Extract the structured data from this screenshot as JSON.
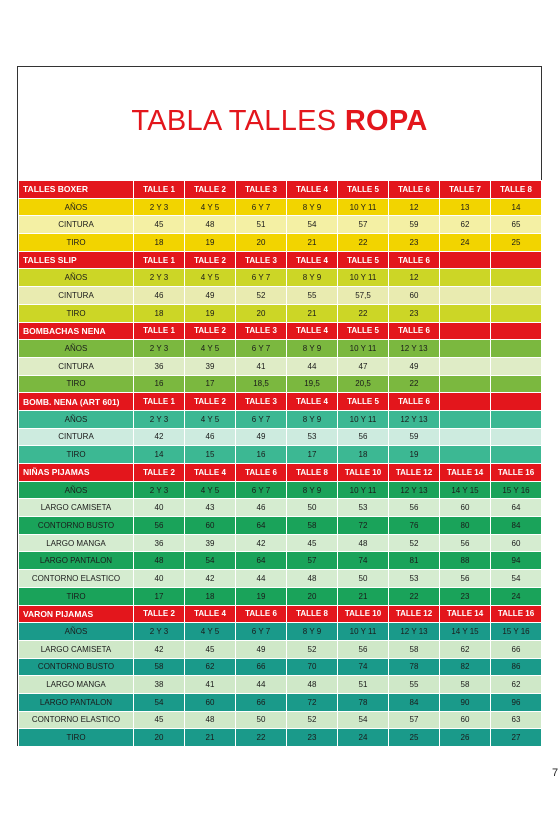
{
  "title": {
    "normal": "TABLA TALLES",
    "bold": "ROPA"
  },
  "page_number": "7",
  "sections": [
    {
      "key": "boxer",
      "header": [
        "TALLES BOXER",
        "TALLE 1",
        "TALLE 2",
        "TALLE 3",
        "TALLE 4",
        "TALLE 5",
        "TALLE 6",
        "TALLE 7",
        "TALLE 8"
      ],
      "rows": [
        [
          "AÑOS",
          "2 Y 3",
          "4 Y 5",
          "6 Y 7",
          "8 Y 9",
          "10 Y 11",
          "12",
          "13",
          "14"
        ],
        [
          "CINTURA",
          "45",
          "48",
          "51",
          "54",
          "57",
          "59",
          "62",
          "65"
        ],
        [
          "TIRO",
          "18",
          "19",
          "20",
          "21",
          "22",
          "23",
          "24",
          "25"
        ]
      ]
    },
    {
      "key": "slip",
      "header": [
        "TALLES SLIP",
        "TALLE 1",
        "TALLE 2",
        "TALLE 3",
        "TALLE 4",
        "TALLE 5",
        "TALLE 6",
        "",
        ""
      ],
      "rows": [
        [
          "AÑOS",
          "2 Y 3",
          "4 Y 5",
          "6 Y 7",
          "8 Y 9",
          "10 Y 11",
          "12",
          "",
          ""
        ],
        [
          "CINTURA",
          "46",
          "49",
          "52",
          "55",
          "57,5",
          "60",
          "",
          ""
        ],
        [
          "TIRO",
          "18",
          "19",
          "20",
          "21",
          "22",
          "23",
          "",
          ""
        ]
      ]
    },
    {
      "key": "bomb",
      "header": [
        "BOMBACHAS NENA",
        "TALLE 1",
        "TALLE 2",
        "TALLE 3",
        "TALLE 4",
        "TALLE 5",
        "TALLE 6",
        "",
        ""
      ],
      "rows": [
        [
          "AÑOS",
          "2 Y 3",
          "4 Y 5",
          "6 Y 7",
          "8 Y 9",
          "10 Y 11",
          "12 Y 13",
          "",
          ""
        ],
        [
          "CINTURA",
          "36",
          "39",
          "41",
          "44",
          "47",
          "49",
          "",
          ""
        ],
        [
          "TIRO",
          "16",
          "17",
          "18,5",
          "19,5",
          "20,5",
          "22",
          "",
          ""
        ]
      ]
    },
    {
      "key": "art",
      "header": [
        "BOMB. NENA (ART 601)",
        "TALLE 1",
        "TALLE 2",
        "TALLE 3",
        "TALLE 4",
        "TALLE 5",
        "TALLE 6",
        "",
        ""
      ],
      "rows": [
        [
          "AÑOS",
          "2 Y 3",
          "4 Y 5",
          "6 Y 7",
          "8 Y 9",
          "10 Y 11",
          "12 Y 13",
          "",
          ""
        ],
        [
          "CINTURA",
          "42",
          "46",
          "49",
          "53",
          "56",
          "59",
          "",
          ""
        ],
        [
          "TIRO",
          "14",
          "15",
          "16",
          "17",
          "18",
          "19",
          "",
          ""
        ]
      ]
    },
    {
      "key": "nina",
      "header": [
        "NIÑAS PIJAMAS",
        "TALLE 2",
        "TALLE 4",
        "TALLE 6",
        "TALLE 8",
        "TALLE 10",
        "TALLE 12",
        "TALLE 14",
        "TALLE 16"
      ],
      "rows": [
        [
          "AÑOS",
          "2 Y 3",
          "4 Y 5",
          "6 Y 7",
          "8 Y 9",
          "10 Y 11",
          "12 Y 13",
          "14 Y 15",
          "15 Y 16"
        ],
        [
          "LARGO CAMISETA",
          "40",
          "43",
          "46",
          "50",
          "53",
          "56",
          "60",
          "64"
        ],
        [
          "CONTORNO BUSTO",
          "56",
          "60",
          "64",
          "58",
          "72",
          "76",
          "80",
          "84"
        ],
        [
          "LARGO MANGA",
          "36",
          "39",
          "42",
          "45",
          "48",
          "52",
          "56",
          "60"
        ],
        [
          "LARGO PANTALON",
          "48",
          "54",
          "64",
          "57",
          "74",
          "81",
          "88",
          "94"
        ],
        [
          "CONTORNO ELASTICO",
          "40",
          "42",
          "44",
          "48",
          "50",
          "53",
          "56",
          "54"
        ],
        [
          "TIRO",
          "17",
          "18",
          "19",
          "20",
          "21",
          "22",
          "23",
          "24"
        ]
      ]
    },
    {
      "key": "varon",
      "header": [
        "VARON PIJAMAS",
        "TALLE 2",
        "TALLE 4",
        "TALLE 6",
        "TALLE 8",
        "TALLE 10",
        "TALLE 12",
        "TALLE 14",
        "TALLE 16"
      ],
      "rows": [
        [
          "AÑOS",
          "2 Y 3",
          "4 Y 5",
          "6 Y 7",
          "8 Y 9",
          "10 Y 11",
          "12 Y 13",
          "14 Y 15",
          "15 Y 16"
        ],
        [
          "LARGO CAMISETA",
          "42",
          "45",
          "49",
          "52",
          "56",
          "58",
          "62",
          "66"
        ],
        [
          "CONTORNO BUSTO",
          "58",
          "62",
          "66",
          "70",
          "74",
          "78",
          "82",
          "86"
        ],
        [
          "LARGO MANGA",
          "38",
          "41",
          "44",
          "48",
          "51",
          "55",
          "58",
          "62"
        ],
        [
          "LARGO PANTALON",
          "54",
          "60",
          "66",
          "72",
          "78",
          "84",
          "90",
          "96"
        ],
        [
          "CONTORNO ELASTICO",
          "45",
          "48",
          "50",
          "52",
          "54",
          "57",
          "60",
          "63"
        ],
        [
          "TIRO",
          "20",
          "21",
          "22",
          "23",
          "24",
          "25",
          "26",
          "27"
        ]
      ]
    }
  ]
}
